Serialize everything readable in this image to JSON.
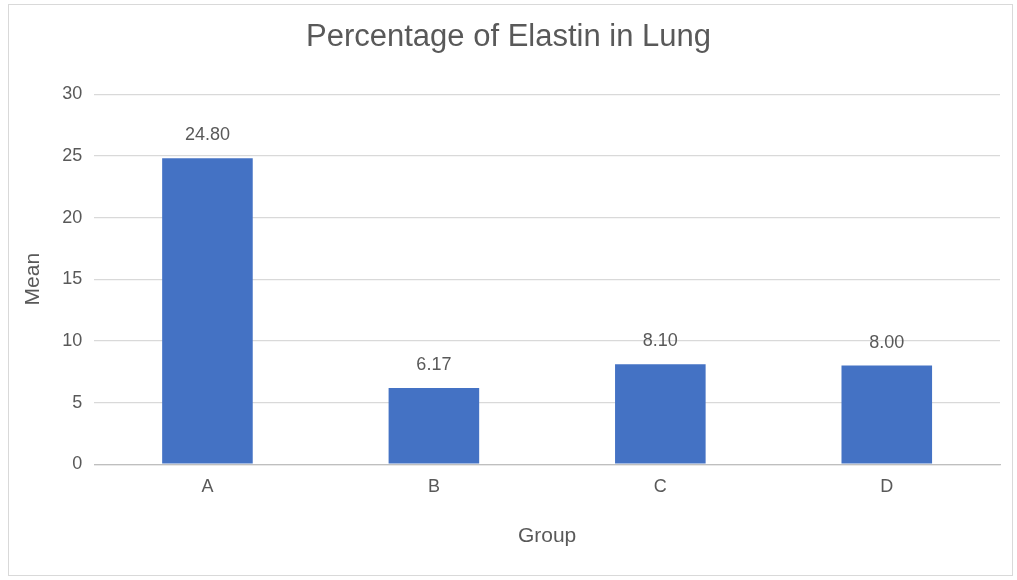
{
  "chart_data": {
    "type": "bar",
    "title": "Percentage of Elastin in Lung",
    "xlabel": "Group",
    "ylabel": "Mean",
    "categories": [
      "A",
      "B",
      "C",
      "D"
    ],
    "values": [
      24.8,
      6.17,
      8.1,
      8.0
    ],
    "value_labels": [
      "24.80",
      "6.17",
      "8.10",
      "8.00"
    ],
    "color": "#4472c4",
    "ylim": [
      0,
      30
    ],
    "yticks": [
      0,
      5,
      10,
      15,
      20,
      25,
      30
    ],
    "grid": "y",
    "legend": false
  }
}
